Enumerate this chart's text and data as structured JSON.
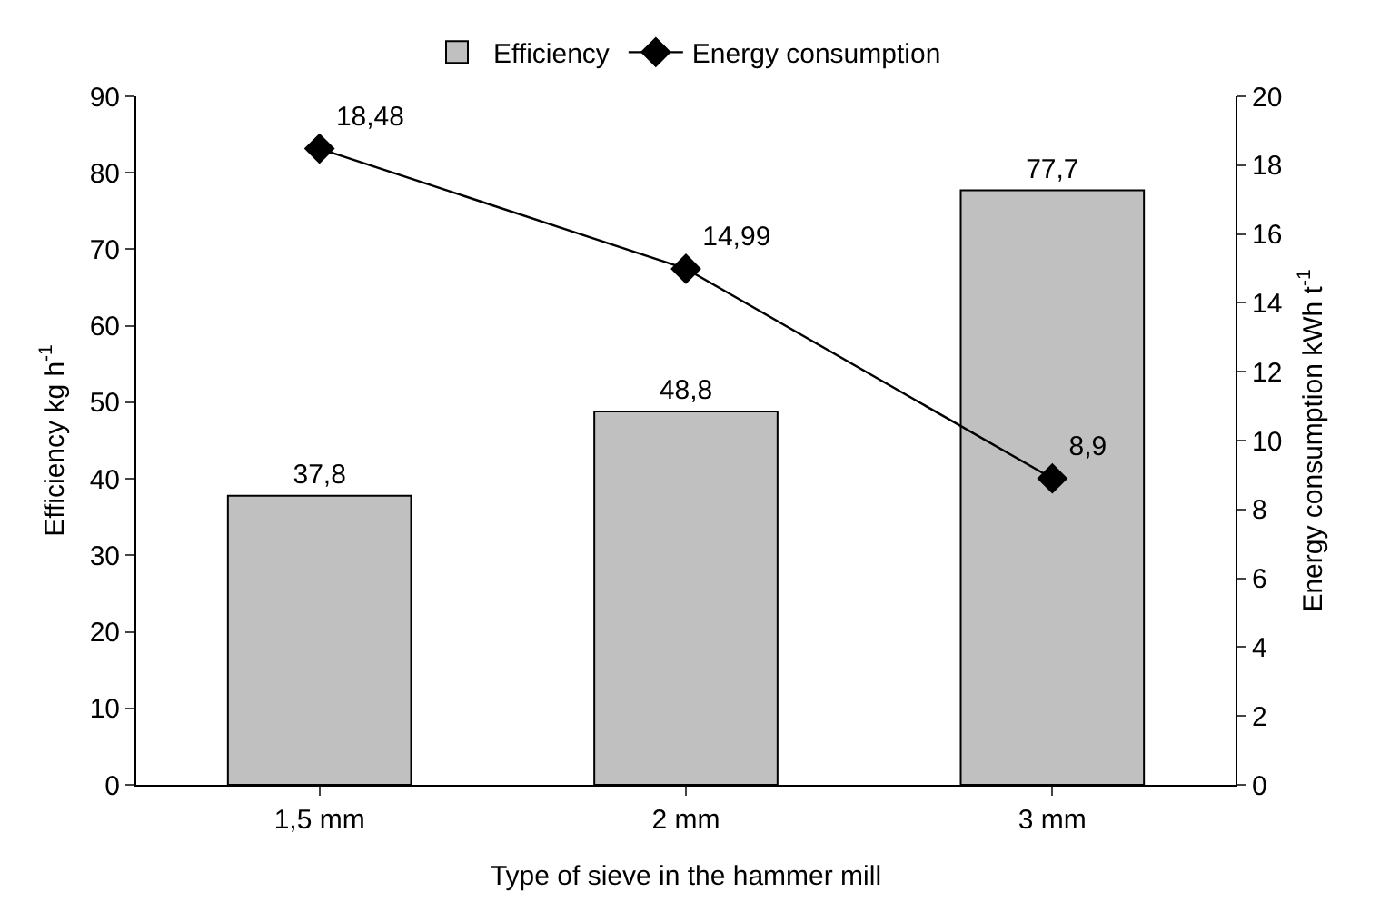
{
  "chart_data": {
    "type": "bar",
    "categories": [
      "1,5 mm",
      "2 mm",
      "3 mm"
    ],
    "xlabel": "Type of sieve in the hammer mill",
    "ylabel": "Efficiency kg h$^{-1}$",
    "y2label": "Energy consumption kWh t$^{-1}$",
    "ylim": [
      0,
      90
    ],
    "yticks": [
      0,
      10,
      20,
      30,
      40,
      50,
      60,
      70,
      80,
      90
    ],
    "y2lim": [
      0,
      20
    ],
    "y2ticks": [
      0,
      2,
      4,
      6,
      8,
      10,
      12,
      14,
      16,
      18,
      20
    ],
    "legend": "top",
    "marker": "diamond",
    "series": [
      {
        "name": "Efficiency",
        "color": "#c0c0c0",
        "values": [
          37.8,
          48.8,
          77.7
        ],
        "value_labels": [
          "37,8",
          "48,8",
          "77,7"
        ]
      },
      {
        "name": "Energy consumption",
        "type": "line",
        "axis": "y2",
        "color": "#000000",
        "values": [
          18.48,
          14.99,
          8.9
        ],
        "value_labels": [
          "18,48",
          "14,99",
          "8,9"
        ]
      }
    ]
  }
}
